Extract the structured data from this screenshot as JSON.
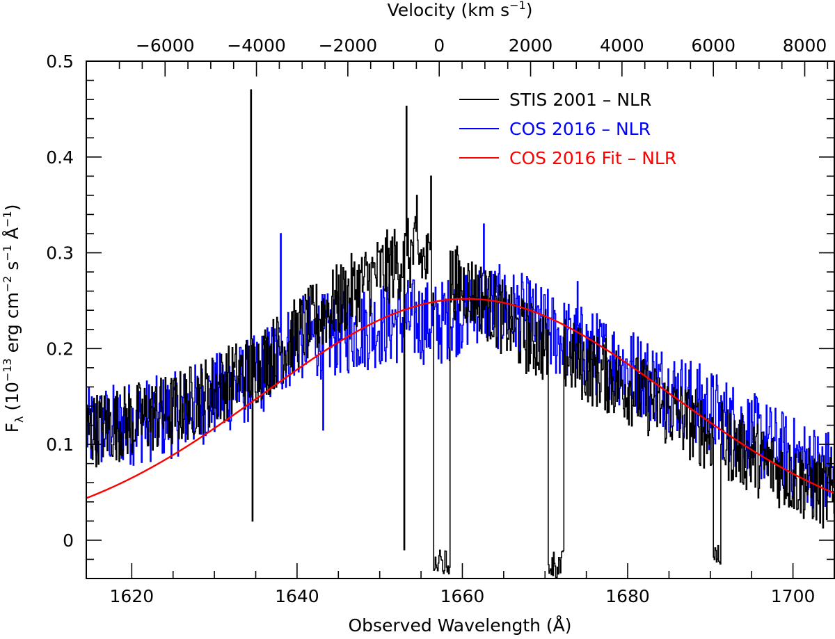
{
  "chart_data": {
    "type": "line",
    "title": "",
    "xlabel": "Observed Wavelength (Å)",
    "x2label_main": "Velocity (km s",
    "x2label_sup": "−1",
    "x2label_end": ")",
    "ylabel_parts": {
      "f": "F",
      "f_sub": "λ",
      "p1": " (10",
      "s1": "−13",
      "p2": " erg cm",
      "s2": "−2",
      "p3": " s",
      "s3": "−1",
      "p4": " Å",
      "s4": "−1",
      "p5": ")"
    },
    "xlim": [
      1614.5,
      1705
    ],
    "ylim": [
      -0.04,
      0.5
    ],
    "x_ticks": [
      1620,
      1640,
      1660,
      1680,
      1700
    ],
    "x_tick_labels": [
      "1620",
      "1640",
      "1660",
      "1680",
      "1700"
    ],
    "y_ticks": [
      0,
      0.1,
      0.2,
      0.3,
      0.4,
      0.5
    ],
    "y_tick_labels": [
      "0",
      "0.1",
      "0.2",
      "0.3",
      "0.4",
      "0.5"
    ],
    "velocity_zero_wavelength": 1657.2,
    "velocity_ticks": [
      -6000,
      -4000,
      -2000,
      0,
      2000,
      4000,
      6000,
      8000
    ],
    "velocity_tick_labels": [
      "−6000",
      "−4000",
      "−2000",
      "0",
      "2000",
      "4000",
      "6000",
      "8000"
    ],
    "legend_position": "top-right",
    "series": [
      {
        "name": "STIS 2001 – NLR",
        "color": "#000000",
        "continuum_anchor_points": [
          [
            1615,
            0.115
          ],
          [
            1625,
            0.135
          ],
          [
            1635,
            0.18
          ],
          [
            1640,
            0.215
          ],
          [
            1645,
            0.25
          ],
          [
            1650,
            0.28
          ],
          [
            1654,
            0.3
          ],
          [
            1657,
            0.28
          ],
          [
            1662,
            0.255
          ],
          [
            1667,
            0.215
          ],
          [
            1672,
            0.195
          ],
          [
            1680,
            0.16
          ],
          [
            1690,
            0.11
          ],
          [
            1700,
            0.065
          ],
          [
            1705,
            0.045
          ]
        ],
        "spikes": [
          [
            1634.4,
            0.47
          ],
          [
            1634.6,
            0.02
          ],
          [
            1652.9,
            -0.01
          ],
          [
            1653.2,
            0.453
          ],
          [
            1656.2,
            0.38
          ],
          [
            1654.5,
            0.36
          ]
        ],
        "absorption_troughs": [
          [
            1656.5,
            1658.5,
            -0.04
          ],
          [
            1670.3,
            1672.2,
            -0.04
          ],
          [
            1690.3,
            1691.2,
            -0.03
          ]
        ]
      },
      {
        "name": "COS 2016 – NLR",
        "color": "#0000ff",
        "continuum_anchor_points": [
          [
            1615,
            0.115
          ],
          [
            1625,
            0.13
          ],
          [
            1635,
            0.17
          ],
          [
            1640,
            0.21
          ],
          [
            1645,
            0.215
          ],
          [
            1650,
            0.225
          ],
          [
            1654,
            0.23
          ],
          [
            1657,
            0.225
          ],
          [
            1662,
            0.25
          ],
          [
            1667,
            0.235
          ],
          [
            1672,
            0.21
          ],
          [
            1680,
            0.18
          ],
          [
            1690,
            0.135
          ],
          [
            1700,
            0.085
          ],
          [
            1705,
            0.07
          ]
        ],
        "spikes": [
          [
            1638.0,
            0.32
          ],
          [
            1662.6,
            0.33
          ],
          [
            1673.9,
            0.27
          ],
          [
            1643.1,
            0.115
          ]
        ]
      },
      {
        "name": "COS 2016 Fit – NLR",
        "color": "#ff0000",
        "model": "gaussian",
        "amplitude": 0.252,
        "center": 1660.5,
        "sigma": 24.6
      }
    ]
  }
}
